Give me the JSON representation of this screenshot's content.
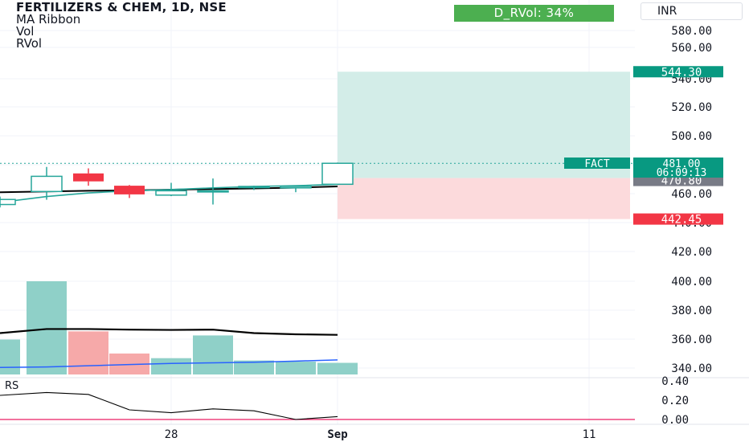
{
  "symbol_header": "FERTILIZERS & CHEM, 1D, NSE",
  "indicators": [
    "MA Ribbon",
    "Vol",
    "RVol"
  ],
  "rvol_badge": "D_RVol: 34%",
  "currency": "INR",
  "rs_label": "RS",
  "colors": {
    "up": "#26a69a",
    "down": "#f23645",
    "volume_up": "#8fd0c8",
    "volume_down": "#f6a9a9",
    "ma_black": "#000000",
    "ma_blue": "#2962ff",
    "rs_line": "#000000",
    "rs_zero": "#e91e63",
    "target_zone": "#d3ede8",
    "stop_zone": "#fcdadc",
    "last_price_badge": "#089981",
    "position_price_badge": "#787b86",
    "rvol_badge": "#4caf50"
  },
  "chart_data": [
    {
      "type": "candlestick",
      "title": "FERTILIZERS & CHEM, 1D, NSE",
      "y_ticks": [
        "580.00",
        "560.00",
        "540.00",
        "520.00",
        "500.00",
        "480.00",
        "460.00",
        "440.00",
        "420.00",
        "400.00",
        "380.00",
        "360.00",
        "340.00"
      ],
      "x_ticks": [
        "28",
        "Sep",
        "11"
      ],
      "candles": [
        {
          "open": 452.5,
          "high": 458.0,
          "low": 450.5,
          "close": 456.0,
          "direction": "up"
        },
        {
          "open": 461.5,
          "high": 478.5,
          "low": 455.8,
          "close": 472.0,
          "direction": "up"
        },
        {
          "open": 474.0,
          "high": 477.5,
          "low": 465.5,
          "close": 468.5,
          "direction": "down"
        },
        {
          "open": 465.5,
          "high": 466.0,
          "low": 457.0,
          "close": 459.5,
          "direction": "down"
        },
        {
          "open": 462.0,
          "high": 467.5,
          "low": 458.3,
          "close": 459.0,
          "direction": "up"
        },
        {
          "open": 462.0,
          "high": 470.5,
          "low": 452.5,
          "close": 462.0,
          "direction": "up"
        },
        {
          "open": 464.5,
          "high": 465.5,
          "low": 462.5,
          "close": 465.0,
          "direction": "up"
        },
        {
          "open": 465.0,
          "high": 465.5,
          "low": 461.0,
          "close": 464.0,
          "direction": "up"
        },
        {
          "open": 466.5,
          "high": 481.5,
          "low": 466.0,
          "close": 481.0,
          "direction": "up"
        }
      ],
      "ma_black": [
        461.0,
        461.5,
        462.0,
        462.2,
        462.8,
        463.2,
        463.6,
        464.2,
        465.0
      ],
      "ma_green": [
        454.0,
        458.0,
        460.5,
        462.0,
        462.8,
        464.0,
        465.0,
        465.5,
        466.5
      ],
      "long_position": {
        "entry": 470.8,
        "target": 544.3,
        "stop": 442.45,
        "entry_label": "470.80",
        "target_label": "544.30",
        "stop_label": "442.45"
      },
      "last_price": {
        "label": "FACT",
        "price": "481.00",
        "countdown": "06:09:13",
        "value": 481.0
      },
      "volume": {
        "bars": [
          {
            "value": 60,
            "direction": "up"
          },
          {
            "value": 160,
            "direction": "up"
          },
          {
            "value": 74,
            "direction": "down"
          },
          {
            "value": 36,
            "direction": "down"
          },
          {
            "value": 28,
            "direction": "up"
          },
          {
            "value": 67,
            "direction": "up"
          },
          {
            "value": 24,
            "direction": "up"
          },
          {
            "value": 22,
            "direction": "up"
          },
          {
            "value": 20,
            "direction": "up"
          }
        ],
        "ma_black": [
          71,
          78,
          78,
          77,
          76.5,
          77,
          71,
          69,
          68
        ],
        "ma_blue": [
          12,
          13,
          15,
          17,
          19,
          20,
          21,
          23,
          25
        ]
      }
    },
    {
      "type": "line",
      "title": "RS",
      "y_ticks": [
        "0.40",
        "0.20",
        "0.00"
      ],
      "ylim": [
        0,
        0.4
      ],
      "values": [
        0.25,
        0.28,
        0.26,
        0.1,
        0.07,
        0.11,
        0.09,
        0.0,
        0.03
      ]
    }
  ]
}
